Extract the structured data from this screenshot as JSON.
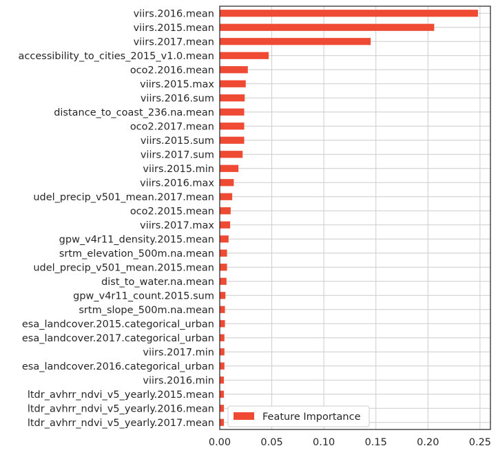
{
  "chart_data": {
    "type": "bar",
    "orientation": "horizontal",
    "categories": [
      "viirs.2016.mean",
      "viirs.2015.mean",
      "viirs.2017.mean",
      "accessibility_to_cities_2015_v1.0.mean",
      "oco2.2016.mean",
      "viirs.2015.max",
      "viirs.2016.sum",
      "distance_to_coast_236.na.mean",
      "oco2.2017.mean",
      "viirs.2015.sum",
      "viirs.2017.sum",
      "viirs.2015.min",
      "viirs.2016.max",
      "udel_precip_v501_mean.2017.mean",
      "oco2.2015.mean",
      "viirs.2017.max",
      "gpw_v4r11_density.2015.mean",
      "srtm_elevation_500m.na.mean",
      "udel_precip_v501_mean.2015.mean",
      "dist_to_water.na.mean",
      "gpw_v4r11_count.2015.sum",
      "srtm_slope_500m.na.mean",
      "esa_landcover.2015.categorical_urban",
      "esa_landcover.2017.categorical_urban",
      "viirs.2017.min",
      "esa_landcover.2016.categorical_urban",
      "viirs.2016.min",
      "ltdr_avhrr_ndvi_v5_yearly.2015.mean",
      "ltdr_avhrr_ndvi_v5_yearly.2016.mean",
      "ltdr_avhrr_ndvi_v5_yearly.2017.mean"
    ],
    "series": [
      {
        "name": "Feature Importance",
        "color": "#ee4a34",
        "values": [
          0.248,
          0.206,
          0.145,
          0.047,
          0.027,
          0.025,
          0.024,
          0.0235,
          0.0235,
          0.0235,
          0.022,
          0.018,
          0.0135,
          0.012,
          0.0105,
          0.01,
          0.0085,
          0.007,
          0.007,
          0.0065,
          0.0055,
          0.005,
          0.005,
          0.0045,
          0.0045,
          0.0045,
          0.004,
          0.004,
          0.004,
          0.004
        ]
      }
    ],
    "xticks": [
      "0.00",
      "0.05",
      "0.10",
      "0.15",
      "0.20",
      "0.25"
    ],
    "xtick_values": [
      0,
      0.05,
      0.1,
      0.15,
      0.2,
      0.25
    ],
    "xlim": [
      0,
      0.26
    ],
    "title": "",
    "xlabel": "",
    "ylabel": "",
    "grid": true,
    "legend_position": "lower-right"
  }
}
